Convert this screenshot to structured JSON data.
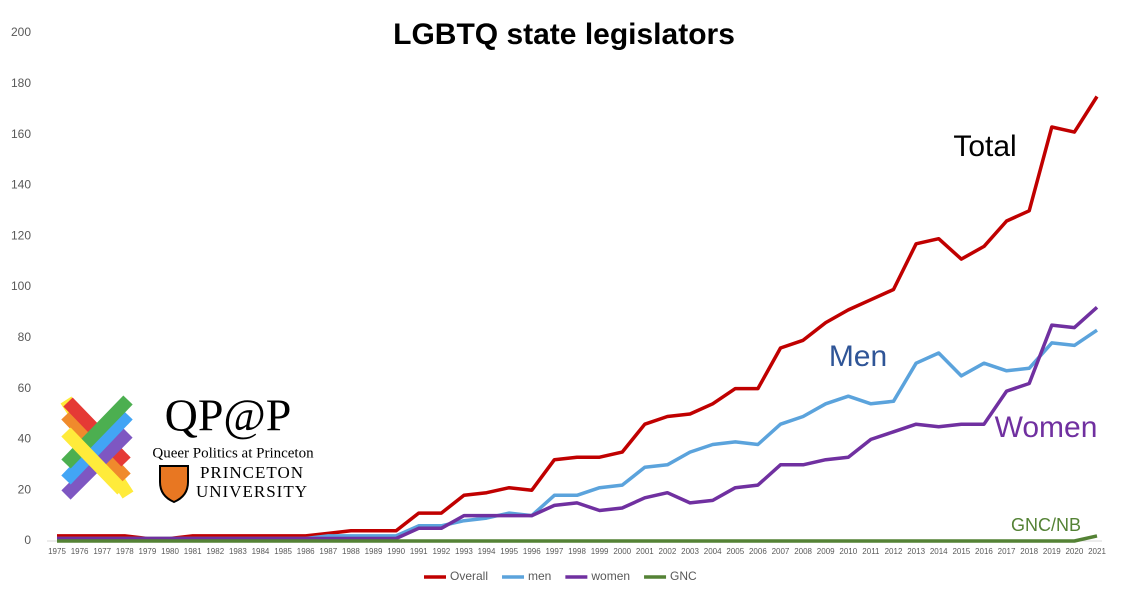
{
  "chart_data": {
    "type": "line",
    "title": "LGBTQ state legislators",
    "categories": [
      "1975",
      "1976",
      "1977",
      "1978",
      "1979",
      "1980",
      "1981",
      "1982",
      "1983",
      "1984",
      "1985",
      "1986",
      "1987",
      "1988",
      "1989",
      "1990",
      "1991",
      "1992",
      "1993",
      "1994",
      "1995",
      "1996",
      "1997",
      "1998",
      "1999",
      "2000",
      "2001",
      "2002",
      "2003",
      "2004",
      "2005",
      "2006",
      "2007",
      "2008",
      "2009",
      "2010",
      "2011",
      "2012",
      "2013",
      "2014",
      "2015",
      "2016",
      "2017",
      "2018",
      "2019",
      "2020",
      "2021"
    ],
    "series": [
      {
        "name": "Overall",
        "color": "#c00000",
        "values": [
          2,
          2,
          2,
          2,
          1,
          1,
          2,
          2,
          2,
          2,
          2,
          2,
          3,
          4,
          4,
          4,
          11,
          11,
          18,
          19,
          21,
          20,
          32,
          33,
          33,
          35,
          46,
          49,
          50,
          54,
          60,
          60,
          76,
          79,
          86,
          91,
          95,
          99,
          117,
          119,
          111,
          116,
          126,
          130,
          163,
          161,
          175
        ]
      },
      {
        "name": "men",
        "color": "#5ba3dc",
        "values": [
          1,
          1,
          1,
          1,
          1,
          1,
          1,
          1,
          1,
          1,
          1,
          1,
          2,
          2,
          2,
          2,
          6,
          6,
          8,
          9,
          11,
          10,
          18,
          18,
          21,
          22,
          29,
          30,
          35,
          38,
          39,
          38,
          46,
          49,
          54,
          57,
          54,
          55,
          70,
          74,
          65,
          70,
          67,
          68,
          78,
          77,
          83
        ]
      },
      {
        "name": "women",
        "color": "#7030a0",
        "values": [
          1,
          1,
          1,
          1,
          1,
          1,
          1,
          1,
          1,
          1,
          1,
          1,
          1,
          1,
          1,
          1,
          5,
          5,
          10,
          10,
          10,
          10,
          14,
          15,
          12,
          13,
          17,
          19,
          15,
          16,
          21,
          22,
          30,
          30,
          32,
          33,
          40,
          43,
          46,
          45,
          46,
          46,
          59,
          62,
          85,
          84,
          92
        ]
      },
      {
        "name": "GNC",
        "color": "#548235",
        "values": [
          0,
          0,
          0,
          0,
          0,
          0,
          0,
          0,
          0,
          0,
          0,
          0,
          0,
          0,
          0,
          0,
          0,
          0,
          0,
          0,
          0,
          0,
          0,
          0,
          0,
          0,
          0,
          0,
          0,
          0,
          0,
          0,
          0,
          0,
          0,
          0,
          0,
          0,
          0,
          0,
          0,
          0,
          0,
          0,
          0,
          0,
          2
        ]
      }
    ],
    "ylim": [
      0,
      200
    ],
    "yticks": [
      0,
      20,
      40,
      60,
      80,
      100,
      120,
      140,
      160,
      180,
      200
    ],
    "grid": false,
    "legend": "bottom",
    "annotations": [
      "Total",
      "Men",
      "Women",
      "GNC/NB"
    ]
  },
  "logo": {
    "title": "QP@P",
    "subtitle": "Queer Politics at Princeton",
    "university1": "PRINCETON",
    "university2": "UNIVERSITY"
  }
}
